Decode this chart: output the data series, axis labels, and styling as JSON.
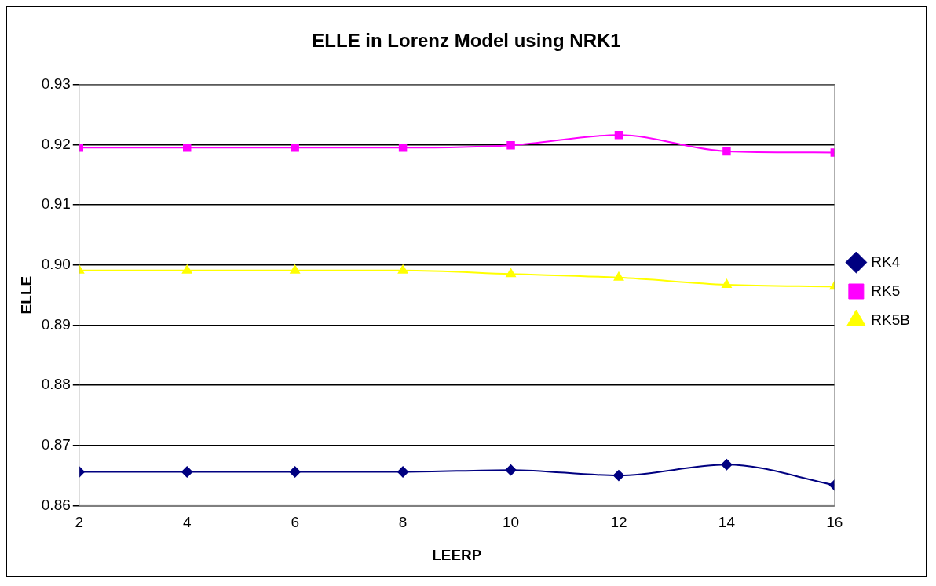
{
  "chart_data": {
    "type": "line",
    "title": "ELLE in Lorenz Model using NRK1",
    "xlabel": "LEERP",
    "ylabel": "ELLE",
    "x": [
      2,
      4,
      6,
      8,
      10,
      12,
      14,
      16
    ],
    "series": [
      {
        "name": "RK4",
        "color": "#000080",
        "marker": "diamond",
        "values": [
          0.8656,
          0.8656,
          0.8656,
          0.8656,
          0.8659,
          0.865,
          0.8668,
          0.8634
        ]
      },
      {
        "name": "RK5",
        "color": "#ff00ff",
        "marker": "square",
        "values": [
          0.9195,
          0.9195,
          0.9195,
          0.9195,
          0.9199,
          0.9216,
          0.9189,
          0.9187
        ]
      },
      {
        "name": "RK5B",
        "color": "#ffff00",
        "marker": "triangle",
        "values": [
          0.8991,
          0.8991,
          0.8991,
          0.8991,
          0.8985,
          0.8979,
          0.8967,
          0.8964
        ]
      }
    ],
    "xlim": [
      2,
      16
    ],
    "xticks": [
      2,
      4,
      6,
      8,
      10,
      12,
      14,
      16
    ],
    "ylim": [
      0.86,
      0.93
    ],
    "yticks": [
      0.86,
      0.87,
      0.88,
      0.89,
      {
        "value": 0.9,
        "label": "0.90"
      },
      0.91,
      0.92,
      0.93
    ],
    "grid": "y",
    "legend": "right",
    "line_style": "solid"
  }
}
